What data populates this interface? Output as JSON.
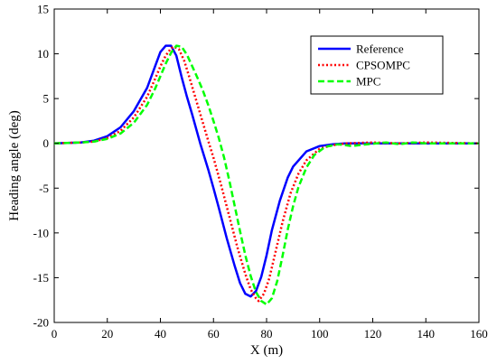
{
  "chart_data": {
    "type": "line",
    "xlabel": "X (m)",
    "ylabel": "Heading angle (deg)",
    "xlim": [
      0,
      160
    ],
    "ylim": [
      -20,
      15
    ],
    "xticks": [
      0,
      20,
      40,
      60,
      80,
      100,
      120,
      140,
      160
    ],
    "yticks": [
      -20,
      -15,
      -10,
      -5,
      0,
      5,
      10,
      15
    ],
    "grid": false,
    "legend_position": "top-right",
    "series": [
      {
        "name": "Reference",
        "color": "#0000ff",
        "dash": "solid",
        "points": [
          [
            0,
            0
          ],
          [
            10,
            0.1
          ],
          [
            15,
            0.3
          ],
          [
            20,
            0.8
          ],
          [
            25,
            1.8
          ],
          [
            30,
            3.6
          ],
          [
            35,
            6.2
          ],
          [
            38,
            8.6
          ],
          [
            40,
            10.2
          ],
          [
            42,
            10.9
          ],
          [
            44,
            10.9
          ],
          [
            46,
            9.8
          ],
          [
            48,
            7.4
          ],
          [
            50,
            5.2
          ],
          [
            52,
            3.2
          ],
          [
            55,
            0
          ],
          [
            58,
            -2.9
          ],
          [
            60,
            -5
          ],
          [
            62,
            -7.2
          ],
          [
            65,
            -10.6
          ],
          [
            68,
            -13.7
          ],
          [
            70,
            -15.6
          ],
          [
            72,
            -16.8
          ],
          [
            74,
            -17.1
          ],
          [
            76,
            -16.5
          ],
          [
            78,
            -14.9
          ],
          [
            80,
            -12.5
          ],
          [
            82,
            -9.7
          ],
          [
            85,
            -6.4
          ],
          [
            88,
            -3.8
          ],
          [
            90,
            -2.6
          ],
          [
            95,
            -0.9
          ],
          [
            100,
            -0.3
          ],
          [
            105,
            -0.1
          ],
          [
            110,
            0
          ],
          [
            160,
            0
          ]
        ]
      },
      {
        "name": "CPSOMPC",
        "color": "#ff0000",
        "dash": "dotted",
        "points": [
          [
            0,
            0
          ],
          [
            10,
            0.1
          ],
          [
            15,
            0.2
          ],
          [
            20,
            0.6
          ],
          [
            25,
            1.4
          ],
          [
            30,
            2.9
          ],
          [
            35,
            5.2
          ],
          [
            38,
            7.2
          ],
          [
            40,
            8.6
          ],
          [
            42,
            9.8
          ],
          [
            44,
            10.6
          ],
          [
            45,
            10.8
          ],
          [
            47,
            10.5
          ],
          [
            49,
            9.2
          ],
          [
            51,
            7.3
          ],
          [
            53,
            5.3
          ],
          [
            55,
            3.3
          ],
          [
            58,
            0.3
          ],
          [
            60,
            -1.6
          ],
          [
            63,
            -4.8
          ],
          [
            66,
            -8.2
          ],
          [
            69,
            -11.6
          ],
          [
            72,
            -14.6
          ],
          [
            74,
            -16.3
          ],
          [
            76,
            -17.3
          ],
          [
            77,
            -17.6
          ],
          [
            79,
            -16.8
          ],
          [
            81,
            -15.1
          ],
          [
            83,
            -12.6
          ],
          [
            86,
            -8.8
          ],
          [
            89,
            -5.6
          ],
          [
            92,
            -3.4
          ],
          [
            95,
            -1.9
          ],
          [
            100,
            -0.6
          ],
          [
            105,
            -0.2
          ],
          [
            110,
            0
          ],
          [
            120,
            0.1
          ],
          [
            130,
            0
          ],
          [
            140,
            0.1
          ],
          [
            160,
            0
          ]
        ]
      },
      {
        "name": "MPC",
        "color": "#00ff00",
        "dash": "dashed",
        "points": [
          [
            0,
            0
          ],
          [
            10,
            0.1
          ],
          [
            15,
            0.2
          ],
          [
            20,
            0.5
          ],
          [
            25,
            1.1
          ],
          [
            30,
            2.3
          ],
          [
            35,
            4.3
          ],
          [
            38,
            6.1
          ],
          [
            40,
            7.5
          ],
          [
            42,
            8.9
          ],
          [
            44,
            10.1
          ],
          [
            46,
            10.9
          ],
          [
            48,
            10.8
          ],
          [
            50,
            9.9
          ],
          [
            52,
            8.6
          ],
          [
            54,
            7.3
          ],
          [
            56,
            5.9
          ],
          [
            58,
            4.3
          ],
          [
            60,
            2.5
          ],
          [
            62,
            0.6
          ],
          [
            64,
            -1.6
          ],
          [
            66,
            -4.2
          ],
          [
            68,
            -7
          ],
          [
            70,
            -9.8
          ],
          [
            72,
            -12.5
          ],
          [
            74,
            -14.8
          ],
          [
            76,
            -16.6
          ],
          [
            78,
            -17.6
          ],
          [
            80,
            -18
          ],
          [
            82,
            -17.3
          ],
          [
            84,
            -15.4
          ],
          [
            86,
            -12.6
          ],
          [
            88,
            -9.6
          ],
          [
            90,
            -7
          ],
          [
            92,
            -4.9
          ],
          [
            95,
            -2.7
          ],
          [
            98,
            -1.3
          ],
          [
            102,
            -0.4
          ],
          [
            107,
            -0.1
          ],
          [
            112,
            -0.3
          ],
          [
            118,
            -0.1
          ],
          [
            125,
            0.1
          ],
          [
            130,
            -0.1
          ],
          [
            135,
            0.1
          ],
          [
            140,
            0
          ],
          [
            160,
            0
          ]
        ]
      }
    ]
  }
}
